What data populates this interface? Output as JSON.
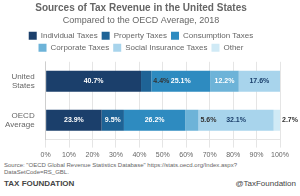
{
  "chart_data": {
    "type": "bar",
    "orientation": "horizontal",
    "stacked": true,
    "title": "Sources of Tax Revenue in the United States",
    "subtitle": "Compared to the OECD Average, 2018",
    "categories": [
      "United\nStates",
      "OECD\nAverage"
    ],
    "series": [
      {
        "name": "Individual Taxes",
        "color": "#1b3f6b",
        "values": [
          40.7,
          23.9
        ],
        "value_labels": [
          "40.7%",
          "23.9%"
        ]
      },
      {
        "name": "Property Taxes",
        "color": "#1e6396",
        "values": [
          4.4,
          9.5
        ],
        "value_labels": [
          "4.4%",
          "9.5%"
        ]
      },
      {
        "name": "Consumption Taxes",
        "color": "#2e8bc0",
        "values": [
          25.1,
          26.2
        ],
        "value_labels": [
          "25.1%",
          "26.2%"
        ]
      },
      {
        "name": "Corporate Taxes",
        "color": "#6db3d8",
        "values": [
          12.2,
          5.6
        ],
        "value_labels": [
          "12.2%",
          "5.6%"
        ]
      },
      {
        "name": "Social Insurance Taxes",
        "color": "#a8d4ec",
        "values": [
          17.6,
          32.1
        ],
        "value_labels": [
          "17.6%",
          "32.1%"
        ]
      },
      {
        "name": "Other",
        "color": "#d0eaf6",
        "values": [
          0,
          2.7
        ],
        "value_labels": [
          null,
          "2.7%"
        ]
      }
    ],
    "xlim": [
      0,
      100
    ],
    "xticks": [
      {
        "value": 0,
        "label": "0%"
      },
      {
        "value": 10,
        "label": "10%"
      },
      {
        "value": 20,
        "label": "20%"
      },
      {
        "value": 30,
        "label": "30%"
      },
      {
        "value": 40,
        "label": "40%"
      },
      {
        "value": 50,
        "label": "50%"
      },
      {
        "value": 60,
        "label": "60%"
      },
      {
        "value": 70,
        "label": "70%"
      },
      {
        "value": 80,
        "label": "80%"
      },
      {
        "value": 90,
        "label": "90%"
      },
      {
        "value": 100,
        "label": "100%"
      }
    ],
    "grid": true,
    "legend": "top",
    "data_labels": true,
    "annotations": [
      "Source: \"OECD Global Revenue Statistics Database\" https://stats.oecd.org/Index.aspx?DataSetCode=RS_GBL.",
      "TAX FOUNDATION",
      "@TaxFoundation"
    ]
  }
}
